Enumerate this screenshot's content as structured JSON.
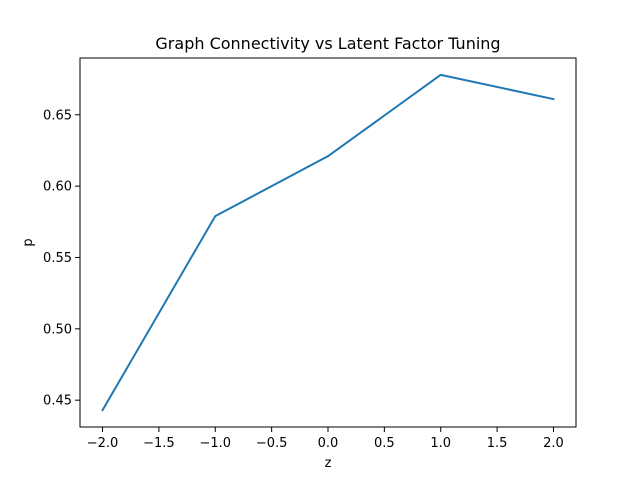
{
  "chart_data": {
    "type": "line",
    "title": "Graph Connectivity vs Latent Factor Tuning",
    "xlabel": "z",
    "ylabel": "p",
    "x": [
      -2.0,
      -1.0,
      0.0,
      1.0,
      2.0
    ],
    "series": [
      {
        "values": [
          0.443,
          0.579,
          0.621,
          0.678,
          0.661
        ],
        "color": "#1f77b4"
      }
    ],
    "xlim": [
      -2.2,
      2.2
    ],
    "ylim": [
      0.4312,
      0.6898
    ],
    "x_ticks": [
      -2.0,
      -1.5,
      -1.0,
      -0.5,
      0.0,
      0.5,
      1.0,
      1.5,
      2.0
    ],
    "x_tick_labels": [
      "−2.0",
      "−1.5",
      "−1.0",
      "−0.5",
      "0.0",
      "0.5",
      "1.0",
      "1.5",
      "2.0"
    ],
    "y_ticks": [
      0.45,
      0.5,
      0.55,
      0.6,
      0.65
    ],
    "y_tick_labels": [
      "0.45",
      "0.50",
      "0.55",
      "0.60",
      "0.65"
    ],
    "grid": false
  }
}
